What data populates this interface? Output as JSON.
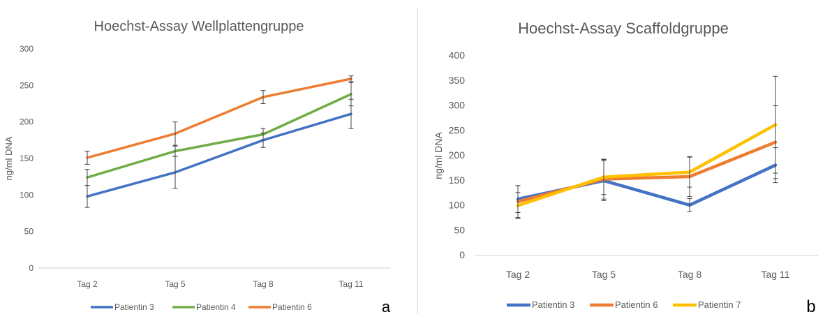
{
  "chart_data": [
    {
      "type": "line",
      "title": "Hoechst-Assay Wellplattengruppe",
      "ylabel": "ng/ml DNA",
      "xlabel": "",
      "categories": [
        "Tag 2",
        "Tag 5",
        "Tag 8",
        "Tag 11"
      ],
      "ylim": [
        0,
        300
      ],
      "yticks": [
        0,
        50,
        100,
        150,
        200,
        250,
        300
      ],
      "grid": false,
      "legend": "bottom",
      "panel_label": "a",
      "series": [
        {
          "name": "Patientin 3",
          "color": "#4472C4",
          "values": [
            98,
            131,
            175,
            211
          ],
          "err": [
            15,
            22,
            10,
            20
          ]
        },
        {
          "name": "Patientin 4",
          "color": "#70AD47",
          "values": [
            124,
            160,
            183,
            238
          ],
          "err": [
            11,
            7,
            8,
            16
          ]
        },
        {
          "name": "Patientin 6",
          "color": "#ED7D31",
          "values": [
            151,
            184,
            234,
            259
          ],
          "err": [
            9,
            16,
            9,
            4
          ]
        }
      ]
    },
    {
      "type": "line",
      "title": "Hoechst-Assay Scaffoldgruppe",
      "ylabel": "ng/ml DNA",
      "xlabel": "",
      "categories": [
        "Tag 2",
        "Tag 5",
        "Tag 8",
        "Tag 11"
      ],
      "ylim": [
        0,
        400
      ],
      "yticks": [
        0,
        50,
        100,
        150,
        200,
        250,
        300,
        350,
        400
      ],
      "grid": false,
      "legend": "bottom",
      "panel_label": "b",
      "series": [
        {
          "name": "Patientin 3",
          "color": "#4472C4",
          "values": [
            113,
            150,
            101,
            181
          ],
          "err": [
            27,
            40,
            13,
            35
          ]
        },
        {
          "name": "Patientin 6",
          "color": "#ED7D31",
          "values": [
            108,
            153,
            158,
            227
          ],
          "err": [
            32,
            40,
            40,
            73
          ]
        },
        {
          "name": "Patientin 7",
          "color": "#FFC000",
          "values": [
            100,
            157,
            167,
            262
          ],
          "err": [
            26,
            35,
            30,
            97
          ]
        }
      ]
    }
  ]
}
